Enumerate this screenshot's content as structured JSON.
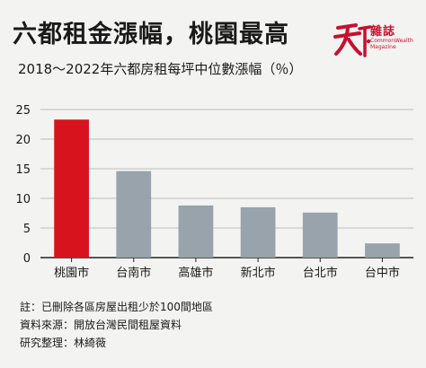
{
  "header": {
    "title": "六都租金漲幅，桃園最高",
    "subtitle": "2018～2022年六都房租每坪中位數漲幅（％）"
  },
  "brand": {
    "name": "雜誌",
    "english": "CommonWealth Magazine",
    "logo_icon": "tianxia-logo",
    "color": "#c8102e"
  },
  "chart_data": {
    "type": "bar",
    "title": "",
    "xlabel": "",
    "ylabel": "",
    "categories": [
      "桃園市",
      "台南市",
      "高雄市",
      "新北市",
      "台北市",
      "台中市"
    ],
    "values": [
      23.3,
      14.6,
      8.8,
      8.5,
      7.6,
      2.4
    ],
    "ylim": [
      0,
      25
    ],
    "yticks": [
      0,
      5,
      10,
      15,
      20,
      25
    ],
    "grid": true,
    "highlight_color": "#d7141e",
    "bar_color": "#98a3ab",
    "grid_color": "#bdbdbd"
  },
  "footnotes": [
    "註：已刪除各區房屋出租少於100間地區",
    "資料來源：開放台灣民間租屋資料",
    "研究整理：林綺薇"
  ]
}
